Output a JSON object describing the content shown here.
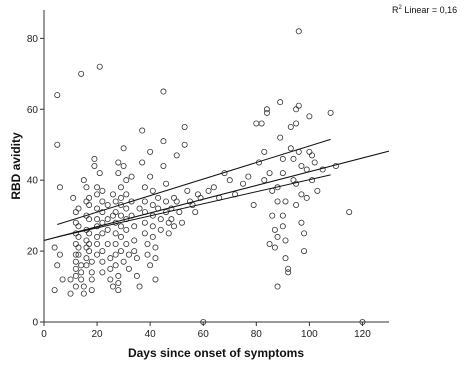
{
  "chart_data": {
    "type": "scatter",
    "title": "",
    "xlabel": "Days since onset of symptoms",
    "ylabel": "RBD avidity",
    "xlim": [
      0,
      130
    ],
    "ylim": [
      0,
      88
    ],
    "x_ticks": [
      0,
      20,
      40,
      60,
      80,
      100,
      120
    ],
    "y_ticks": [
      0,
      20,
      40,
      60,
      80
    ],
    "grid": false,
    "annotation": {
      "prefix": "R",
      "superscript": "2",
      "text": " Linear = 0,16"
    },
    "fit_line": {
      "x": [
        0,
        130
      ],
      "y": [
        23.0,
        48.2
      ]
    },
    "ci_band": {
      "upper": {
        "x": [
          5,
          108
        ],
        "y": [
          27.5,
          51.5
        ]
      },
      "lower": {
        "x": [
          5,
          108
        ],
        "y": [
          24.0,
          41.5
        ]
      }
    },
    "points": [
      [
        5,
        64
      ],
      [
        5,
        50
      ],
      [
        6,
        38
      ],
      [
        4,
        21
      ],
      [
        6,
        19
      ],
      [
        5,
        16
      ],
      [
        7,
        12
      ],
      [
        4,
        9
      ],
      [
        10,
        12
      ],
      [
        10,
        8
      ],
      [
        11,
        35
      ],
      [
        12,
        31
      ],
      [
        12,
        28
      ],
      [
        12,
        25
      ],
      [
        12,
        22
      ],
      [
        12,
        19
      ],
      [
        12,
        17
      ],
      [
        12,
        15
      ],
      [
        12,
        13
      ],
      [
        12,
        10
      ],
      [
        13,
        32
      ],
      [
        13,
        27
      ],
      [
        13,
        24
      ],
      [
        13,
        21
      ],
      [
        13,
        19
      ],
      [
        14,
        16
      ],
      [
        14,
        14
      ],
      [
        14,
        12
      ],
      [
        15,
        10
      ],
      [
        15,
        8
      ],
      [
        14,
        70
      ],
      [
        15,
        40
      ],
      [
        16,
        38
      ],
      [
        16,
        34
      ],
      [
        16,
        30
      ],
      [
        16,
        26
      ],
      [
        16,
        23
      ],
      [
        16,
        21
      ],
      [
        16,
        18
      ],
      [
        16,
        16
      ],
      [
        17,
        35
      ],
      [
        17,
        33
      ],
      [
        17,
        29
      ],
      [
        17,
        25
      ],
      [
        17,
        22
      ],
      [
        17,
        20
      ],
      [
        18,
        17
      ],
      [
        18,
        14
      ],
      [
        18,
        12
      ],
      [
        18,
        9
      ],
      [
        19,
        46
      ],
      [
        19,
        44
      ],
      [
        20,
        38
      ],
      [
        20,
        36
      ],
      [
        20,
        32
      ],
      [
        20,
        29
      ],
      [
        20,
        27
      ],
      [
        20,
        24
      ],
      [
        20,
        22
      ],
      [
        20,
        19
      ],
      [
        21,
        72
      ],
      [
        21,
        42
      ],
      [
        22,
        37
      ],
      [
        22,
        34
      ],
      [
        22,
        31
      ],
      [
        22,
        28
      ],
      [
        22,
        25
      ],
      [
        22,
        20
      ],
      [
        22,
        17
      ],
      [
        22,
        14
      ],
      [
        24,
        33
      ],
      [
        24,
        29
      ],
      [
        24,
        26
      ],
      [
        24,
        22
      ],
      [
        25,
        18
      ],
      [
        25,
        15
      ],
      [
        25,
        12
      ],
      [
        26,
        10
      ],
      [
        26,
        36
      ],
      [
        26,
        30
      ],
      [
        27,
        34
      ],
      [
        27,
        31
      ],
      [
        27,
        28
      ],
      [
        27,
        25
      ],
      [
        27,
        22
      ],
      [
        27,
        19
      ],
      [
        27,
        16
      ],
      [
        28,
        13
      ],
      [
        28,
        11
      ],
      [
        28,
        9
      ],
      [
        28,
        45
      ],
      [
        28,
        42
      ],
      [
        29,
        38
      ],
      [
        29,
        35
      ],
      [
        29,
        33
      ],
      [
        29,
        30
      ],
      [
        29,
        27
      ],
      [
        29,
        24
      ],
      [
        29,
        20
      ],
      [
        30,
        17
      ],
      [
        30,
        49
      ],
      [
        30,
        44
      ],
      [
        31,
        40
      ],
      [
        31,
        36
      ],
      [
        31,
        32
      ],
      [
        31,
        29
      ],
      [
        31,
        26
      ],
      [
        31,
        22
      ],
      [
        32,
        19
      ],
      [
        32,
        15
      ],
      [
        33,
        41
      ],
      [
        33,
        34
      ],
      [
        33,
        30
      ],
      [
        34,
        27
      ],
      [
        34,
        23
      ],
      [
        34,
        20
      ],
      [
        35,
        18
      ],
      [
        35,
        13
      ],
      [
        36,
        10
      ],
      [
        36,
        32
      ],
      [
        37,
        54
      ],
      [
        37,
        45
      ],
      [
        38,
        38
      ],
      [
        38,
        34
      ],
      [
        38,
        31
      ],
      [
        38,
        28
      ],
      [
        38,
        25
      ],
      [
        39,
        22
      ],
      [
        39,
        19
      ],
      [
        40,
        16
      ],
      [
        40,
        48
      ],
      [
        40,
        41
      ],
      [
        41,
        37
      ],
      [
        41,
        33
      ],
      [
        41,
        30
      ],
      [
        41,
        27
      ],
      [
        41,
        24
      ],
      [
        42,
        21
      ],
      [
        42,
        18
      ],
      [
        42,
        12
      ],
      [
        43,
        35
      ],
      [
        43,
        32
      ],
      [
        44,
        29
      ],
      [
        44,
        26
      ],
      [
        45,
        65
      ],
      [
        45,
        51
      ],
      [
        45,
        44
      ],
      [
        46,
        39
      ],
      [
        46,
        34
      ],
      [
        46,
        31
      ],
      [
        47,
        28
      ],
      [
        47,
        25
      ],
      [
        48,
        32
      ],
      [
        48,
        29
      ],
      [
        49,
        35
      ],
      [
        49,
        27
      ],
      [
        50,
        47
      ],
      [
        50,
        34
      ],
      [
        51,
        31
      ],
      [
        52,
        28
      ],
      [
        53,
        55
      ],
      [
        53,
        50
      ],
      [
        54,
        37
      ],
      [
        55,
        34
      ],
      [
        56,
        33
      ],
      [
        57,
        31
      ],
      [
        58,
        36
      ],
      [
        59,
        35
      ],
      [
        60,
        0
      ],
      [
        62,
        37
      ],
      [
        64,
        38
      ],
      [
        66,
        35
      ],
      [
        68,
        42
      ],
      [
        70,
        40
      ],
      [
        72,
        36
      ],
      [
        75,
        39
      ],
      [
        77,
        41
      ],
      [
        79,
        33
      ],
      [
        80,
        56
      ],
      [
        81,
        45
      ],
      [
        82,
        56
      ],
      [
        83,
        48
      ],
      [
        83,
        40
      ],
      [
        84,
        60
      ],
      [
        84,
        59
      ],
      [
        85,
        42
      ],
      [
        85,
        22
      ],
      [
        86,
        37
      ],
      [
        86,
        30
      ],
      [
        87,
        26
      ],
      [
        87,
        21
      ],
      [
        88,
        38
      ],
      [
        88,
        34
      ],
      [
        88,
        24
      ],
      [
        88,
        10
      ],
      [
        89,
        62
      ],
      [
        89,
        52
      ],
      [
        90,
        46
      ],
      [
        90,
        42
      ],
      [
        90,
        30
      ],
      [
        90,
        27
      ],
      [
        91,
        34
      ],
      [
        91,
        23
      ],
      [
        91,
        18
      ],
      [
        92,
        15
      ],
      [
        92,
        14
      ],
      [
        93,
        55
      ],
      [
        93,
        49
      ],
      [
        94,
        46
      ],
      [
        94,
        40
      ],
      [
        95,
        60
      ],
      [
        95,
        56
      ],
      [
        95,
        39
      ],
      [
        95,
        33
      ],
      [
        96,
        82
      ],
      [
        96,
        61
      ],
      [
        96,
        48
      ],
      [
        97,
        44
      ],
      [
        97,
        36
      ],
      [
        97,
        28
      ],
      [
        98,
        25
      ],
      [
        98,
        20
      ],
      [
        99,
        43
      ],
      [
        99,
        35
      ],
      [
        100,
        58
      ],
      [
        100,
        48
      ],
      [
        101,
        47
      ],
      [
        101,
        40
      ],
      [
        102,
        45
      ],
      [
        103,
        37
      ],
      [
        105,
        43
      ],
      [
        108,
        59
      ],
      [
        110,
        44
      ],
      [
        115,
        31
      ],
      [
        120,
        0
      ]
    ]
  }
}
